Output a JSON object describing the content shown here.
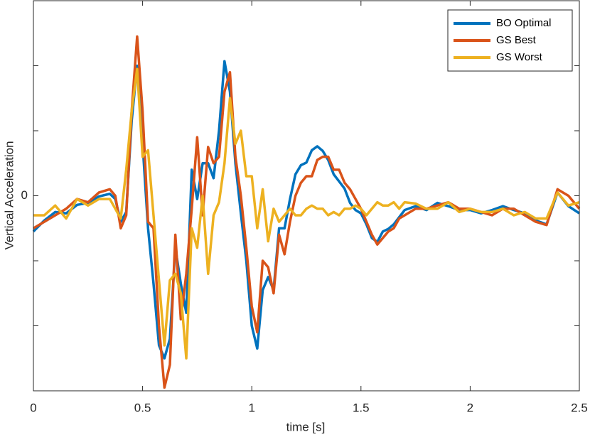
{
  "chart_data": {
    "type": "line",
    "xlabel": "time [s]",
    "ylabel": "Vertical Acceleration",
    "x": [
      0,
      0.05,
      0.1,
      0.15,
      0.2,
      0.25,
      0.3,
      0.35,
      0.375,
      0.4,
      0.425,
      0.45,
      0.475,
      0.5,
      0.525,
      0.55,
      0.575,
      0.6,
      0.625,
      0.65,
      0.675,
      0.7,
      0.725,
      0.75,
      0.775,
      0.8,
      0.825,
      0.85,
      0.875,
      0.9,
      0.925,
      0.95,
      0.975,
      1.0,
      1.025,
      1.05,
      1.075,
      1.1,
      1.125,
      1.15,
      1.175,
      1.2,
      1.225,
      1.25,
      1.275,
      1.3,
      1.325,
      1.35,
      1.375,
      1.4,
      1.425,
      1.45,
      1.475,
      1.5,
      1.525,
      1.55,
      1.575,
      1.6,
      1.625,
      1.65,
      1.675,
      1.7,
      1.75,
      1.8,
      1.85,
      1.9,
      1.95,
      2.0,
      2.05,
      2.1,
      2.15,
      2.2,
      2.25,
      2.3,
      2.35,
      2.4,
      2.45,
      2.5
    ],
    "series": [
      {
        "name": "BO Optimal",
        "color": "#0072bd",
        "values": [
          -0.55,
          -0.38,
          -0.25,
          -0.27,
          -0.14,
          -0.11,
          -0.01,
          0.03,
          -0.05,
          -0.4,
          -0.25,
          1.15,
          2.0,
          0.8,
          -0.5,
          -1.35,
          -2.3,
          -2.5,
          -2.2,
          -0.8,
          -1.35,
          -1.8,
          0.4,
          -0.05,
          0.5,
          0.5,
          0.27,
          1.0,
          2.07,
          1.6,
          0.5,
          -0.27,
          -1.0,
          -2.0,
          -2.35,
          -1.45,
          -1.25,
          -1.45,
          -0.5,
          -0.5,
          -0.05,
          0.33,
          0.47,
          0.51,
          0.7,
          0.76,
          0.69,
          0.55,
          0.33,
          0.22,
          0.11,
          -0.11,
          -0.22,
          -0.27,
          -0.44,
          -0.65,
          -0.71,
          -0.55,
          -0.51,
          -0.44,
          -0.33,
          -0.22,
          -0.16,
          -0.22,
          -0.11,
          -0.16,
          -0.22,
          -0.22,
          -0.27,
          -0.22,
          -0.16,
          -0.22,
          -0.27,
          -0.38,
          -0.44,
          0.05,
          -0.16,
          -0.27
        ]
      },
      {
        "name": "GS Best",
        "color": "#d95319",
        "values": [
          -0.5,
          -0.4,
          -0.3,
          -0.2,
          -0.05,
          -0.1,
          0.05,
          0.1,
          0.0,
          -0.5,
          -0.3,
          1.3,
          2.45,
          1.3,
          -0.4,
          -0.5,
          -2.0,
          -2.95,
          -2.6,
          -0.6,
          -1.9,
          -1.2,
          -0.2,
          0.9,
          -0.3,
          0.75,
          0.5,
          0.6,
          1.6,
          1.9,
          0.6,
          0.0,
          -0.8,
          -1.7,
          -2.1,
          -1.0,
          -1.1,
          -1.5,
          -0.6,
          -0.9,
          -0.4,
          0.0,
          0.2,
          0.3,
          0.3,
          0.55,
          0.6,
          0.6,
          0.4,
          0.4,
          0.2,
          0.1,
          -0.05,
          -0.2,
          -0.4,
          -0.6,
          -0.75,
          -0.65,
          -0.55,
          -0.5,
          -0.35,
          -0.3,
          -0.2,
          -0.2,
          -0.15,
          -0.1,
          -0.2,
          -0.2,
          -0.25,
          -0.3,
          -0.2,
          -0.2,
          -0.3,
          -0.4,
          -0.45,
          0.1,
          0.0,
          -0.2
        ]
      },
      {
        "name": "GS Worst",
        "color": "#edb120",
        "values": [
          -0.3,
          -0.3,
          -0.15,
          -0.35,
          -0.05,
          -0.15,
          -0.05,
          -0.05,
          -0.2,
          -0.35,
          0.4,
          1.3,
          1.95,
          0.6,
          0.7,
          -0.3,
          -1.3,
          -2.3,
          -1.3,
          -1.2,
          -1.5,
          -2.5,
          -0.5,
          -0.8,
          0.0,
          -1.2,
          -0.3,
          -0.1,
          0.5,
          1.5,
          0.8,
          1.0,
          0.3,
          0.3,
          -0.5,
          0.1,
          -0.7,
          -0.2,
          -0.4,
          -0.3,
          -0.2,
          -0.3,
          -0.3,
          -0.2,
          -0.15,
          -0.2,
          -0.2,
          -0.3,
          -0.25,
          -0.3,
          -0.2,
          -0.2,
          -0.15,
          -0.2,
          -0.3,
          -0.2,
          -0.1,
          -0.15,
          -0.15,
          -0.1,
          -0.2,
          -0.1,
          -0.12,
          -0.2,
          -0.2,
          -0.1,
          -0.25,
          -0.2,
          -0.25,
          -0.25,
          -0.2,
          -0.3,
          -0.25,
          -0.35,
          -0.35,
          0.05,
          -0.15,
          -0.1
        ]
      }
    ],
    "xlim": [
      0,
      2.5
    ],
    "xticks": [
      0,
      0.5,
      1,
      1.5,
      2,
      2.5
    ],
    "ylim": [
      -3,
      3
    ],
    "yticks": [
      0
    ],
    "yticks_unlabeled": [
      -2,
      -1,
      1,
      2
    ],
    "legend": "top-right"
  }
}
